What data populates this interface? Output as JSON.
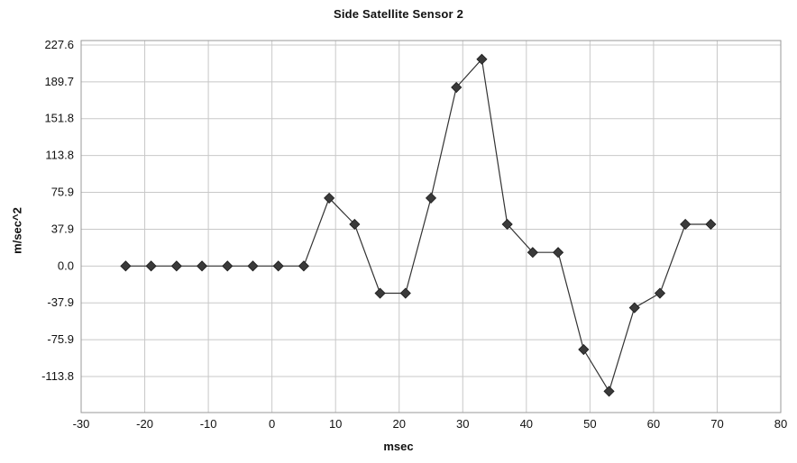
{
  "chart_data": {
    "type": "line",
    "title": "Side Satellite Sensor 2",
    "xlabel": "msec",
    "ylabel": "m/sec^2",
    "xlim": [
      -30,
      80
    ],
    "ylim": [
      -151.8,
      227.6
    ],
    "x_ticks": [
      -30,
      -20,
      -10,
      0,
      10,
      20,
      30,
      40,
      50,
      60,
      70,
      80
    ],
    "x_tick_labels": [
      "-30",
      "-20",
      "-10",
      "0",
      "10",
      "20",
      "30",
      "40",
      "50",
      "60",
      "70",
      "80"
    ],
    "y_ticks": [
      227.6,
      189.7,
      151.8,
      113.8,
      75.9,
      37.9,
      0.0,
      -37.9,
      -75.9,
      -113.8
    ],
    "y_tick_labels": [
      "227.6",
      "189.7",
      "151.8",
      "113.8",
      "75.9",
      "37.9",
      "0.0",
      "-37.9",
      "-75.9",
      "-113.8"
    ],
    "grid": true,
    "legend": "none",
    "marker": "diamond",
    "colors": {
      "line": "#333333",
      "marker": "#3a3a3a",
      "grid": "#c8c8c8",
      "frame": "#999999"
    },
    "series": [
      {
        "x": [
          -23,
          -19,
          -15,
          -11,
          -7,
          -3,
          1,
          5,
          9,
          13,
          17,
          21,
          25,
          29,
          33,
          37,
          41,
          45,
          49,
          53,
          57,
          61,
          65,
          69
        ],
        "values": [
          0.0,
          0.0,
          0.0,
          0.0,
          0.0,
          0.0,
          0.0,
          0.0,
          70.0,
          43.0,
          -28.0,
          -28.0,
          70.0,
          184.0,
          213.0,
          43.0,
          14.0,
          14.0,
          -86.0,
          -129.0,
          -43.0,
          -28.0,
          43.0,
          43.0
        ]
      }
    ]
  }
}
